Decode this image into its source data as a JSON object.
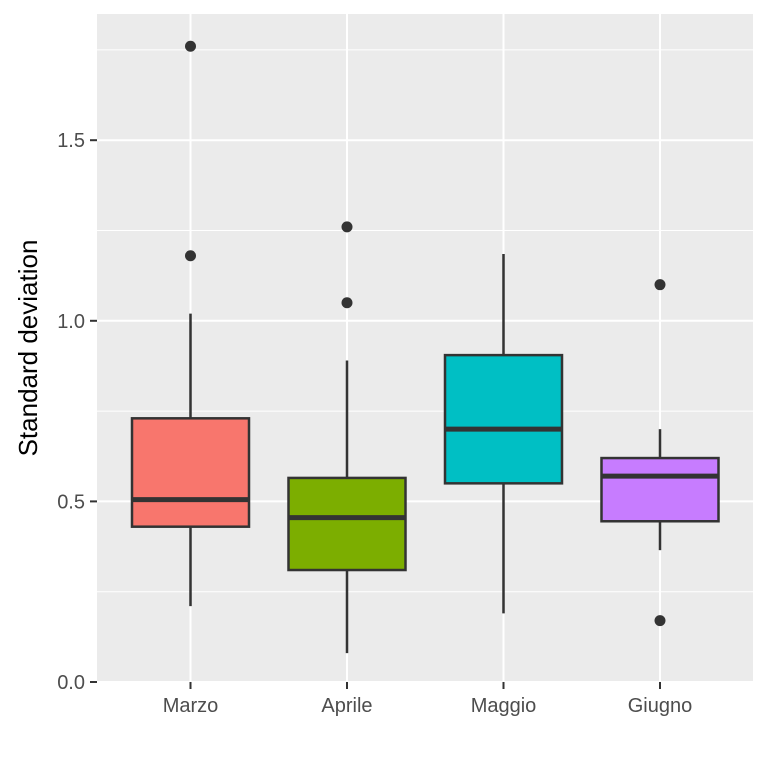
{
  "chart_data": {
    "type": "boxplot",
    "title": "",
    "xlabel": "",
    "ylabel": "Standard deviation",
    "ylim": [
      -0.02,
      1.84
    ],
    "y_ticks": [
      0.0,
      0.5,
      1.0,
      1.5
    ],
    "y_tick_labels": [
      "0.0",
      "0.5",
      "1.0",
      "1.5"
    ],
    "grid": true,
    "legend": "none",
    "panel_background": "#ebebeb",
    "grid_color": "#ffffff",
    "box_outline_color": "#333333",
    "categories": [
      "Marzo",
      "Aprile",
      "Maggio",
      "Giugno"
    ],
    "boxes": [
      {
        "category": "Marzo",
        "fill": "#F8766D",
        "whisker_low": 0.21,
        "q1": 0.43,
        "median": 0.505,
        "q3": 0.73,
        "whisker_high": 1.02,
        "outliers": [
          1.18,
          1.76
        ]
      },
      {
        "category": "Aprile",
        "fill": "#7CAE00",
        "whisker_low": 0.08,
        "q1": 0.31,
        "median": 0.455,
        "q3": 0.565,
        "whisker_high": 0.89,
        "outliers": [
          1.05,
          1.26
        ]
      },
      {
        "category": "Maggio",
        "fill": "#00BFC4",
        "whisker_low": 0.19,
        "q1": 0.55,
        "median": 0.7,
        "q3": 0.905,
        "whisker_high": 1.185,
        "outliers": []
      },
      {
        "category": "Giugno",
        "fill": "#C77CFF",
        "whisker_low": 0.365,
        "q1": 0.445,
        "median": 0.57,
        "q3": 0.62,
        "whisker_high": 0.7,
        "outliers": [
          0.17,
          1.1
        ]
      }
    ]
  }
}
